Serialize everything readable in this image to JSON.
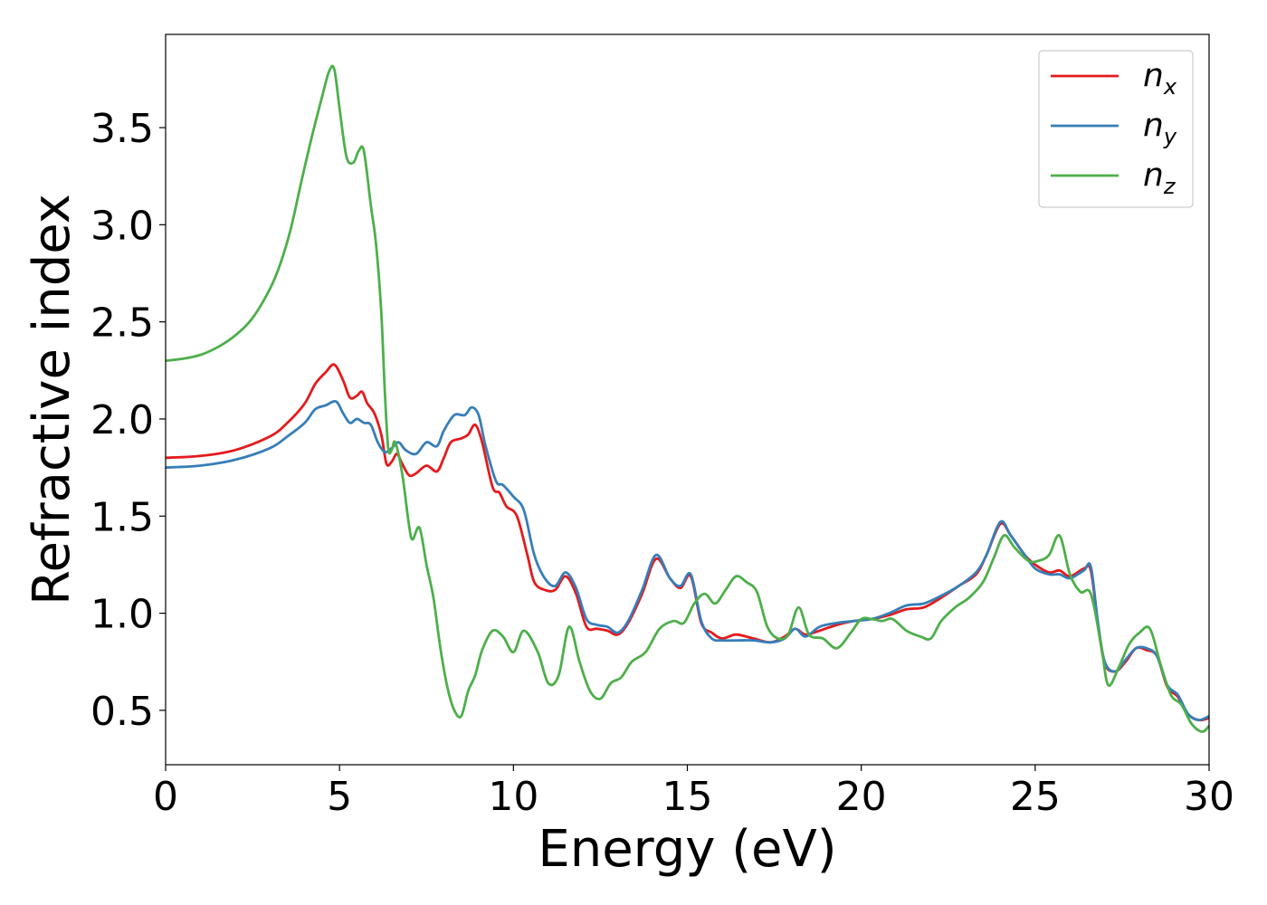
{
  "chart_data": {
    "type": "line",
    "xlabel": "Energy (eV)",
    "ylabel": "Refractive index",
    "xlim": [
      0,
      30
    ],
    "ylim": [
      0.22,
      3.98
    ],
    "xticks": [
      0,
      5,
      10,
      15,
      20,
      25,
      30
    ],
    "xtick_labels": [
      "0",
      "5",
      "10",
      "15",
      "20",
      "25",
      "30"
    ],
    "yticks": [
      0.5,
      1.0,
      1.5,
      2.0,
      2.5,
      3.0,
      3.5
    ],
    "ytick_labels": [
      "0.5",
      "1.0",
      "1.5",
      "2.0",
      "2.5",
      "3.0",
      "3.5"
    ],
    "grid": false,
    "legend_position": "top-right",
    "series": [
      {
        "name": "n_x",
        "label_base": "n",
        "label_sub": "x",
        "color": "#e41a1c",
        "x": [
          0,
          1,
          2,
          3,
          3.5,
          4,
          4.3,
          4.6,
          4.85,
          5.1,
          5.3,
          5.5,
          5.65,
          5.8,
          6.0,
          6.2,
          6.35,
          6.5,
          6.65,
          6.8,
          7.0,
          7.2,
          7.5,
          7.8,
          8.0,
          8.2,
          8.5,
          8.7,
          8.9,
          9.1,
          9.4,
          9.6,
          9.8,
          10.1,
          10.4,
          10.6,
          10.9,
          11.2,
          11.5,
          11.8,
          12.1,
          12.4,
          12.7,
          13.0,
          13.3,
          13.7,
          14.1,
          14.5,
          14.8,
          15.1,
          15.4,
          15.7,
          16.0,
          16.4,
          16.9,
          17.4,
          17.8,
          18.1,
          18.4,
          18.8,
          19.3,
          19.8,
          20.3,
          20.8,
          21.3,
          21.8,
          22.3,
          22.8,
          23.3,
          23.6,
          24.0,
          24.3,
          24.7,
          25.0,
          25.4,
          25.7,
          26.0,
          26.4,
          26.6,
          26.8,
          27.0,
          27.3,
          27.6,
          27.9,
          28.2,
          28.5,
          28.8,
          29.1,
          29.4,
          29.7,
          30.0
        ],
        "values": [
          1.8,
          1.81,
          1.84,
          1.91,
          1.98,
          2.08,
          2.18,
          2.24,
          2.28,
          2.2,
          2.11,
          2.12,
          2.14,
          2.08,
          2.03,
          1.92,
          1.77,
          1.78,
          1.82,
          1.77,
          1.71,
          1.72,
          1.76,
          1.73,
          1.8,
          1.88,
          1.9,
          1.92,
          1.97,
          1.88,
          1.65,
          1.62,
          1.55,
          1.5,
          1.3,
          1.16,
          1.12,
          1.12,
          1.19,
          1.1,
          0.93,
          0.92,
          0.91,
          0.89,
          0.95,
          1.1,
          1.28,
          1.18,
          1.13,
          1.19,
          0.95,
          0.9,
          0.87,
          0.89,
          0.87,
          0.85,
          0.88,
          0.92,
          0.89,
          0.91,
          0.94,
          0.96,
          0.97,
          0.99,
          1.02,
          1.03,
          1.08,
          1.14,
          1.2,
          1.3,
          1.46,
          1.4,
          1.3,
          1.25,
          1.21,
          1.22,
          1.19,
          1.23,
          1.22,
          0.95,
          0.74,
          0.7,
          0.75,
          0.82,
          0.81,
          0.78,
          0.62,
          0.57,
          0.48,
          0.45,
          0.46
        ]
      },
      {
        "name": "n_y",
        "label_base": "n",
        "label_sub": "y",
        "color": "#377eb8",
        "x": [
          0,
          1,
          2,
          3,
          3.5,
          4,
          4.3,
          4.6,
          4.9,
          5.1,
          5.3,
          5.5,
          5.7,
          5.9,
          6.1,
          6.3,
          6.5,
          6.7,
          6.9,
          7.2,
          7.5,
          7.8,
          8.0,
          8.3,
          8.6,
          8.8,
          9.0,
          9.2,
          9.5,
          9.7,
          10.0,
          10.3,
          10.6,
          10.9,
          11.2,
          11.5,
          11.8,
          12.1,
          12.4,
          12.7,
          13.0,
          13.3,
          13.7,
          14.1,
          14.5,
          14.8,
          15.1,
          15.4,
          15.7,
          16.0,
          16.4,
          16.9,
          17.4,
          17.8,
          18.1,
          18.4,
          18.8,
          19.3,
          19.8,
          20.3,
          20.8,
          21.3,
          21.8,
          22.3,
          22.8,
          23.3,
          23.6,
          24.0,
          24.3,
          24.7,
          25.0,
          25.4,
          25.7,
          26.0,
          26.4,
          26.6,
          26.8,
          27.0,
          27.3,
          27.6,
          27.9,
          28.2,
          28.5,
          28.8,
          29.1,
          29.4,
          29.7,
          30.0
        ],
        "values": [
          1.75,
          1.76,
          1.79,
          1.85,
          1.91,
          1.98,
          2.05,
          2.07,
          2.09,
          2.03,
          1.98,
          2.0,
          1.98,
          1.97,
          1.88,
          1.83,
          1.85,
          1.88,
          1.84,
          1.82,
          1.88,
          1.86,
          1.94,
          2.02,
          2.02,
          2.06,
          2.02,
          1.86,
          1.68,
          1.66,
          1.6,
          1.53,
          1.3,
          1.18,
          1.14,
          1.21,
          1.13,
          0.97,
          0.94,
          0.93,
          0.9,
          0.96,
          1.12,
          1.3,
          1.18,
          1.14,
          1.2,
          0.96,
          0.87,
          0.86,
          0.86,
          0.86,
          0.85,
          0.87,
          0.92,
          0.88,
          0.93,
          0.95,
          0.96,
          0.97,
          1.0,
          1.04,
          1.05,
          1.09,
          1.14,
          1.21,
          1.3,
          1.47,
          1.4,
          1.3,
          1.23,
          1.2,
          1.2,
          1.18,
          1.22,
          1.24,
          0.96,
          0.75,
          0.7,
          0.76,
          0.82,
          0.82,
          0.78,
          0.63,
          0.58,
          0.48,
          0.45,
          0.47
        ]
      },
      {
        "name": "n_z",
        "label_base": "n",
        "label_sub": "z",
        "color": "#4daf4a",
        "x": [
          0,
          0.5,
          1,
          1.5,
          2,
          2.5,
          3,
          3.3,
          3.6,
          3.9,
          4.2,
          4.5,
          4.7,
          4.85,
          5.0,
          5.2,
          5.4,
          5.55,
          5.7,
          5.9,
          6.05,
          6.2,
          6.3,
          6.4,
          6.5,
          6.6,
          6.8,
          7.0,
          7.1,
          7.3,
          7.5,
          7.7,
          7.9,
          8.1,
          8.3,
          8.5,
          8.7,
          8.9,
          9.1,
          9.4,
          9.7,
          10.0,
          10.3,
          10.7,
          11.0,
          11.3,
          11.6,
          11.9,
          12.2,
          12.5,
          12.8,
          13.1,
          13.4,
          13.8,
          14.2,
          14.6,
          14.9,
          15.2,
          15.5,
          15.8,
          16.1,
          16.4,
          16.7,
          17.0,
          17.3,
          17.6,
          17.9,
          18.2,
          18.5,
          18.9,
          19.3,
          19.7,
          20.0,
          20.3,
          20.6,
          20.9,
          21.3,
          21.7,
          22.0,
          22.3,
          22.7,
          23.1,
          23.5,
          23.8,
          24.1,
          24.4,
          24.8,
          25.1,
          25.4,
          25.7,
          26.0,
          26.3,
          26.6,
          26.9,
          27.1,
          27.4,
          27.7,
          28.0,
          28.3,
          28.6,
          28.9,
          29.2,
          29.5,
          29.8,
          30.0
        ],
        "values": [
          2.3,
          2.31,
          2.33,
          2.37,
          2.43,
          2.52,
          2.67,
          2.8,
          2.98,
          3.22,
          3.45,
          3.66,
          3.79,
          3.8,
          3.6,
          3.35,
          3.32,
          3.38,
          3.38,
          3.1,
          2.9,
          2.55,
          2.15,
          1.85,
          1.84,
          1.88,
          1.72,
          1.45,
          1.38,
          1.44,
          1.25,
          1.08,
          0.82,
          0.62,
          0.5,
          0.47,
          0.6,
          0.68,
          0.81,
          0.91,
          0.88,
          0.8,
          0.91,
          0.8,
          0.64,
          0.68,
          0.93,
          0.75,
          0.6,
          0.56,
          0.64,
          0.67,
          0.75,
          0.8,
          0.92,
          0.96,
          0.95,
          1.05,
          1.1,
          1.05,
          1.12,
          1.19,
          1.16,
          1.11,
          0.93,
          0.87,
          0.89,
          1.03,
          0.89,
          0.87,
          0.82,
          0.9,
          0.97,
          0.97,
          0.96,
          0.97,
          0.91,
          0.88,
          0.87,
          0.96,
          1.03,
          1.08,
          1.16,
          1.28,
          1.4,
          1.34,
          1.27,
          1.27,
          1.3,
          1.4,
          1.2,
          1.11,
          1.1,
          0.83,
          0.63,
          0.72,
          0.84,
          0.9,
          0.92,
          0.74,
          0.58,
          0.53,
          0.43,
          0.39,
          0.42
        ]
      }
    ]
  }
}
